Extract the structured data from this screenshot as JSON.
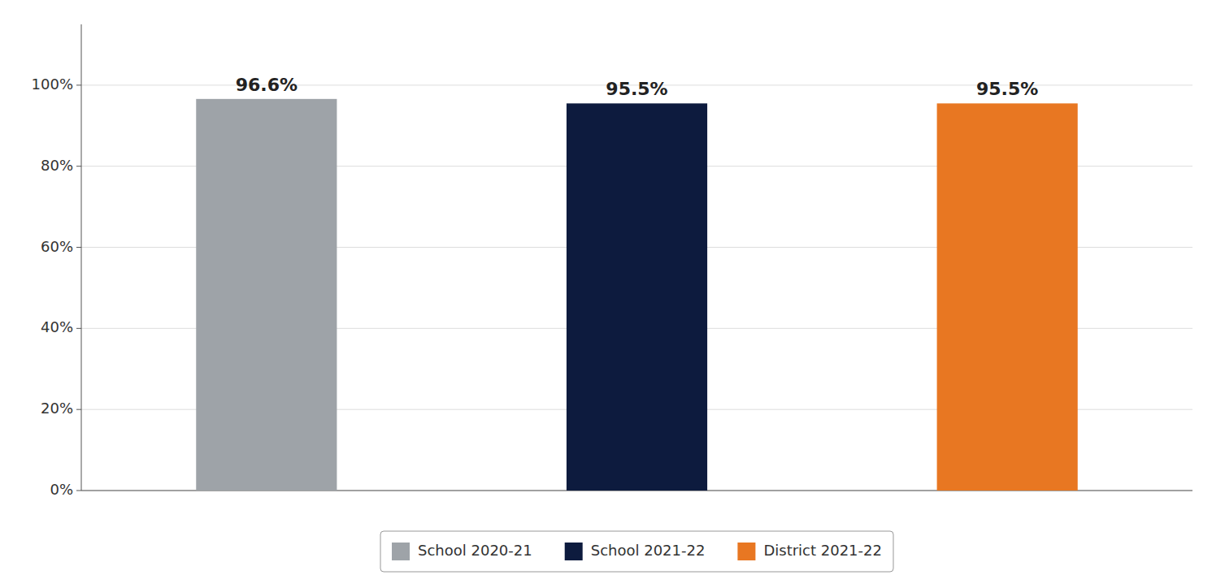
{
  "chart_data": {
    "type": "bar",
    "categories": [
      "School 2020-21",
      "School 2021-22",
      "District 2021-22"
    ],
    "values": [
      0.966,
      0.955,
      0.955
    ],
    "value_labels": [
      "96.6%",
      "95.5%",
      "95.5%"
    ],
    "colors": [
      "#9EA3A8",
      "#0D1B3E",
      "#E87722"
    ],
    "ylim": [
      0,
      1.15
    ],
    "yticks": [
      {
        "value": 0.0,
        "label": "0%"
      },
      {
        "value": 0.2,
        "label": "20%"
      },
      {
        "value": 0.4,
        "label": "40%"
      },
      {
        "value": 0.6,
        "label": "60%"
      },
      {
        "value": 0.8,
        "label": "80%"
      },
      {
        "value": 1.0,
        "label": "100%"
      }
    ],
    "grid": true,
    "legend": "bottom",
    "data_labels": true,
    "tick_labels": "y"
  }
}
